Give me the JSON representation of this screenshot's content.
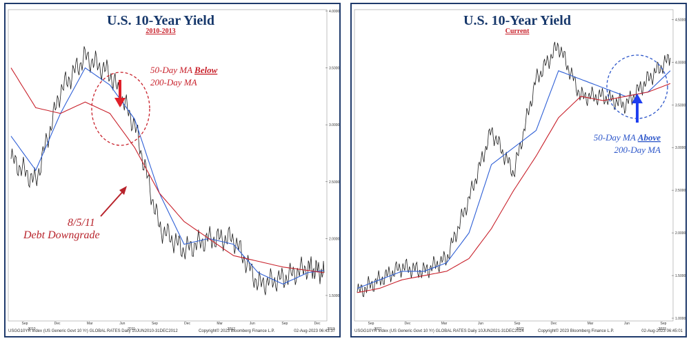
{
  "colors": {
    "price": "#1a1a1a",
    "ma50": "#2e5fd6",
    "ma200": "#c8202a",
    "title": "#17386b",
    "red_ann": "#c8202a",
    "blue_ann": "#2b55c9",
    "frame": "#1f3a6b"
  },
  "chart_data": [
    {
      "type": "line",
      "title": "U.S. 10-Year Yield",
      "subtitle": "2010-2013",
      "ylim": [
        1.3,
        4.0
      ],
      "yticks": [
        "4.0000",
        "3.5000",
        "3.0000",
        "2.5000",
        "2.0000",
        "1.5000"
      ],
      "x_months": [
        "Sep",
        "Dec",
        "Mar",
        "Jun",
        "Sep",
        "Dec",
        "Mar",
        "Jun",
        "Sep",
        "Dec"
      ],
      "x_years": [
        "2010",
        "2011",
        "2012",
        "2013"
      ],
      "series": [
        {
          "name": "price",
          "x": [
            0,
            3,
            6,
            9,
            12,
            15,
            18,
            21,
            24,
            27,
            30,
            33,
            36,
            38
          ],
          "y": [
            2.7,
            2.5,
            3.3,
            3.6,
            3.45,
            3.0,
            2.1,
            1.9,
            2.0,
            2.0,
            1.6,
            1.65,
            1.75,
            1.7
          ]
        },
        {
          "name": "50-Day MA",
          "x": [
            0,
            3,
            6,
            9,
            12,
            15,
            18,
            21,
            24,
            27,
            30,
            33,
            36,
            38
          ],
          "y": [
            2.9,
            2.6,
            3.1,
            3.5,
            3.35,
            3.05,
            2.4,
            1.95,
            2.0,
            1.95,
            1.7,
            1.6,
            1.7,
            1.72
          ]
        },
        {
          "name": "200-Day MA",
          "x": [
            0,
            3,
            6,
            9,
            12,
            15,
            18,
            21,
            24,
            27,
            30,
            33,
            36,
            38
          ],
          "y": [
            3.5,
            3.15,
            3.1,
            3.2,
            3.1,
            2.8,
            2.4,
            2.15,
            2.0,
            1.85,
            1.8,
            1.75,
            1.72,
            1.7
          ]
        }
      ],
      "annotations": [
        {
          "lines": [
            "50-Day MA ",
            "Below",
            " 200-Day MA"
          ],
          "text": "50-Day MA Below 200-Day MA"
        },
        {
          "text": "8/5/11"
        },
        {
          "text": "Debt Downgrade"
        }
      ],
      "footer_left": "USGG10YR Index (US Generic Govt 10 Yr) GLOBAL RATES  Daily 10JUN2010-31DEC2012",
      "footer_mid": "Copyright© 2023 Bloomberg Finance L.P.",
      "footer_right": "02-Aug-2023 06:43:37"
    },
    {
      "type": "line",
      "title": "U.S. 10-Year Yield",
      "subtitle": "Current",
      "ylim": [
        1.0,
        4.6
      ],
      "yticks": [
        "4.5000",
        "4.0000",
        "3.5000",
        "3.0000",
        "2.5000",
        "2.0000",
        "1.5000",
        "1.0000"
      ],
      "x_months": [
        "Sep",
        "Dec",
        "Mar",
        "Jun",
        "Sep",
        "Dec",
        "Mar",
        "Jun",
        "Sep"
      ],
      "x_years": [
        "2021",
        "2022",
        "2023"
      ],
      "series": [
        {
          "name": "price",
          "x": [
            0,
            3,
            6,
            9,
            12,
            15,
            18,
            21,
            24,
            27,
            30,
            33,
            36,
            39,
            42
          ],
          "y": [
            1.3,
            1.45,
            1.6,
            1.55,
            1.7,
            2.4,
            3.2,
            2.7,
            3.8,
            4.2,
            3.6,
            3.6,
            3.5,
            3.8,
            4.05
          ]
        },
        {
          "name": "50-Day MA",
          "x": [
            0,
            3,
            6,
            9,
            12,
            15,
            18,
            21,
            24,
            27,
            30,
            33,
            36,
            39,
            42
          ],
          "y": [
            1.35,
            1.45,
            1.55,
            1.55,
            1.65,
            2.0,
            2.8,
            3.0,
            3.2,
            3.9,
            3.8,
            3.7,
            3.6,
            3.65,
            3.9
          ]
        },
        {
          "name": "200-Day MA",
          "x": [
            0,
            3,
            6,
            9,
            12,
            15,
            18,
            21,
            24,
            27,
            30,
            33,
            36,
            39,
            42
          ],
          "y": [
            1.3,
            1.35,
            1.45,
            1.5,
            1.55,
            1.7,
            2.05,
            2.5,
            2.9,
            3.35,
            3.6,
            3.55,
            3.6,
            3.65,
            3.75
          ]
        }
      ],
      "annotations": [
        {
          "text": "50-Day MA Above"
        },
        {
          "text": "200-Day MA"
        }
      ],
      "footer_left": "USGG10YR Index (US Generic Govt 10 Yr) GLOBAL RATES  Daily 10JUN2021-31DEC2024",
      "footer_mid": "Copyright© 2023 Bloomberg Finance L.P.",
      "footer_right": "02-Aug-2023 06:45:01"
    }
  ],
  "labels": {
    "left_ann_line1_a": "50-Day MA ",
    "left_ann_line1_b": "Below",
    "left_ann_line2": "200-Day MA",
    "left_date": "8/5/11",
    "left_event": "Debt Downgrade",
    "right_ann_line1_a": "50-Day MA ",
    "right_ann_line1_b": "Above",
    "right_ann_line2": "200-Day MA"
  }
}
